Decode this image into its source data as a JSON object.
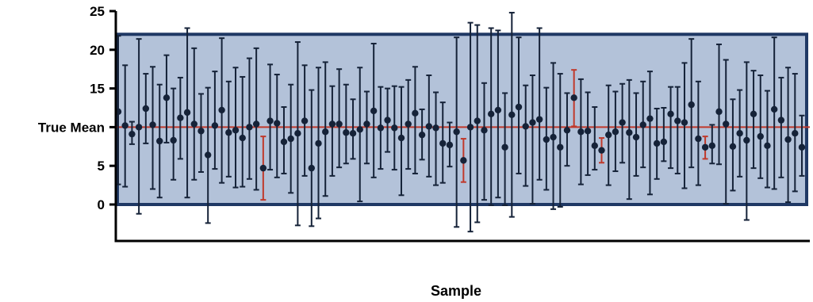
{
  "chart_data": {
    "type": "scatter",
    "title": "",
    "xlabel": "Sample",
    "ylabel": "",
    "ylim": [
      -5,
      25
    ],
    "yticks": [
      0,
      5,
      10,
      15,
      20,
      25
    ],
    "ytick_labels": [
      "0",
      "5",
      "True Mean",
      "15",
      "20",
      "25"
    ],
    "grid": false,
    "legend": "none",
    "reference_line": {
      "label": "True Mean",
      "value": 10,
      "color": "#c0392b"
    },
    "band": {
      "from": 0,
      "to": 22,
      "fill": "#b3c2d9",
      "stroke": "#1f3864"
    },
    "colors": {
      "covers": "#152238",
      "misses": "#c0392b"
    },
    "series": [
      {
        "x": [
          1,
          2,
          3,
          4,
          5,
          6,
          7,
          8,
          9,
          10,
          11,
          12,
          13,
          14,
          15,
          16,
          17,
          18,
          19,
          20,
          21,
          22,
          23,
          24,
          25,
          26,
          27,
          28,
          29,
          30,
          31,
          32,
          33,
          34,
          35,
          36,
          37,
          38,
          39,
          40,
          41,
          42,
          43,
          44,
          45,
          46,
          47,
          48,
          49,
          50,
          51,
          52,
          53,
          54,
          55,
          56,
          57,
          58,
          59,
          60,
          61,
          62,
          63,
          64,
          65,
          66,
          67,
          68,
          69,
          70,
          71,
          72,
          73,
          74,
          75,
          76,
          77,
          78,
          79,
          80,
          81,
          82,
          83,
          84,
          85,
          86,
          87,
          88,
          89,
          90,
          91,
          92,
          93,
          94,
          95,
          96,
          97,
          98,
          99,
          100
        ],
        "mean": [
          12.0,
          10.2,
          9.1,
          10.0,
          12.4,
          10.3,
          8.2,
          13.8,
          8.3,
          11.2,
          11.9,
          10.4,
          9.5,
          6.4,
          10.2,
          12.2,
          9.3,
          9.6,
          8.6,
          10.0,
          10.4,
          4.7,
          10.8,
          10.5,
          8.1,
          8.5,
          9.2,
          10.8,
          4.7,
          7.9,
          9.4,
          10.4,
          10.4,
          9.3,
          9.2,
          9.7,
          10.4,
          12.1,
          9.9,
          10.9,
          9.9,
          8.6,
          10.4,
          11.8,
          9.0,
          10.1,
          9.9,
          7.9,
          7.7,
          9.4,
          5.7,
          10.0,
          10.8,
          9.6,
          11.7,
          12.2,
          7.4,
          11.6,
          12.6,
          10.1,
          10.6,
          11.0,
          8.4,
          8.7,
          7.4,
          9.6,
          13.8,
          9.4,
          9.5,
          7.6,
          7.0,
          9.0,
          9.4,
          10.6,
          9.3,
          8.7,
          10.3,
          11.1,
          7.9,
          8.1,
          11.7,
          10.8,
          10.6,
          12.9,
          8.5,
          7.4,
          7.6,
          12.0,
          10.4,
          7.5,
          9.2,
          8.3,
          11.7,
          8.8,
          7.6,
          12.3,
          10.9,
          8.4,
          9.2,
          7.4
        ],
        "lower": [
          2.6,
          2.3,
          7.8,
          -1.2,
          7.9,
          2.0,
          0.9,
          8.0,
          3.2,
          5.9,
          0.9,
          3.2,
          4.2,
          -2.4,
          4.6,
          2.8,
          3.6,
          2.2,
          2.3,
          3.3,
          1.9,
          0.6,
          4.5,
          3.5,
          4.0,
          1.5,
          -2.7,
          3.7,
          -2.8,
          -1.8,
          1.1,
          3.7,
          4.8,
          5.3,
          5.9,
          0.4,
          5.3,
          3.5,
          4.6,
          6.8,
          4.5,
          1.2,
          4.6,
          4.0,
          5.8,
          3.6,
          2.5,
          2.8,
          4.9,
          -2.9,
          2.9,
          -3.5,
          -2.3,
          0.6,
          -0.1,
          0.9,
          -0.1,
          -1.6,
          4.0,
          2.4,
          0.1,
          3.2,
          1.9,
          -0.6,
          -0.3,
          5.0,
          10.1,
          2.6,
          3.8,
          4.5,
          5.4,
          2.5,
          4.3,
          5.4,
          0.7,
          3.7,
          4.8,
          1.3,
          3.3,
          5.6,
          4.7,
          4.0,
          2.1,
          4.8,
          2.5,
          5.9,
          5.3,
          5.2,
          0.1,
          1.8,
          3.6,
          -2.0,
          4.7,
          3.4,
          2.2,
          2.0,
          3.5,
          0.3,
          1.7,
          3.7
        ],
        "upper": [
          21.8,
          18.0,
          10.7,
          21.4,
          16.9,
          17.8,
          15.5,
          19.3,
          15.0,
          16.4,
          22.8,
          20.2,
          14.3,
          15.1,
          17.2,
          21.5,
          15.9,
          17.7,
          16.5,
          18.9,
          20.2,
          8.8,
          18.1,
          16.8,
          12.6,
          15.5,
          21.0,
          18.0,
          14.8,
          17.7,
          18.4,
          15.3,
          17.5,
          15.5,
          13.6,
          17.7,
          14.6,
          20.8,
          15.2,
          15.0,
          15.3,
          15.2,
          16.1,
          17.8,
          12.3,
          16.7,
          14.5,
          13.2,
          10.6,
          21.6,
          8.5,
          23.5,
          23.2,
          15.7,
          22.8,
          22.5,
          14.4,
          24.8,
          21.6,
          15.4,
          16.7,
          22.8,
          15.1,
          18.3,
          16.9,
          14.4,
          17.4,
          16.2,
          14.5,
          12.6,
          8.6,
          15.4,
          14.6,
          15.6,
          16.1,
          14.4,
          15.9,
          17.2,
          12.4,
          12.5,
          15.2,
          15.2,
          18.3,
          21.4,
          15.9,
          8.8,
          10.3,
          20.7,
          18.7,
          13.6,
          14.8,
          18.4,
          17.3,
          16.7,
          14.7,
          21.6,
          16.4,
          17.7,
          16.9,
          11.5
        ],
        "covers_true_mean": [
          true,
          true,
          true,
          true,
          true,
          true,
          true,
          true,
          true,
          true,
          true,
          true,
          true,
          true,
          true,
          true,
          true,
          true,
          true,
          true,
          true,
          false,
          true,
          true,
          true,
          true,
          true,
          true,
          true,
          true,
          true,
          true,
          true,
          true,
          true,
          true,
          true,
          true,
          true,
          true,
          true,
          true,
          true,
          true,
          true,
          true,
          true,
          true,
          true,
          true,
          false,
          true,
          true,
          true,
          true,
          true,
          true,
          true,
          true,
          true,
          true,
          true,
          true,
          true,
          true,
          true,
          false,
          true,
          true,
          true,
          false,
          true,
          true,
          true,
          true,
          true,
          true,
          true,
          true,
          true,
          true,
          true,
          true,
          true,
          true,
          false,
          true,
          true,
          true,
          true,
          true,
          true,
          true,
          true,
          true,
          true,
          true,
          true,
          true,
          true
        ]
      }
    ]
  }
}
